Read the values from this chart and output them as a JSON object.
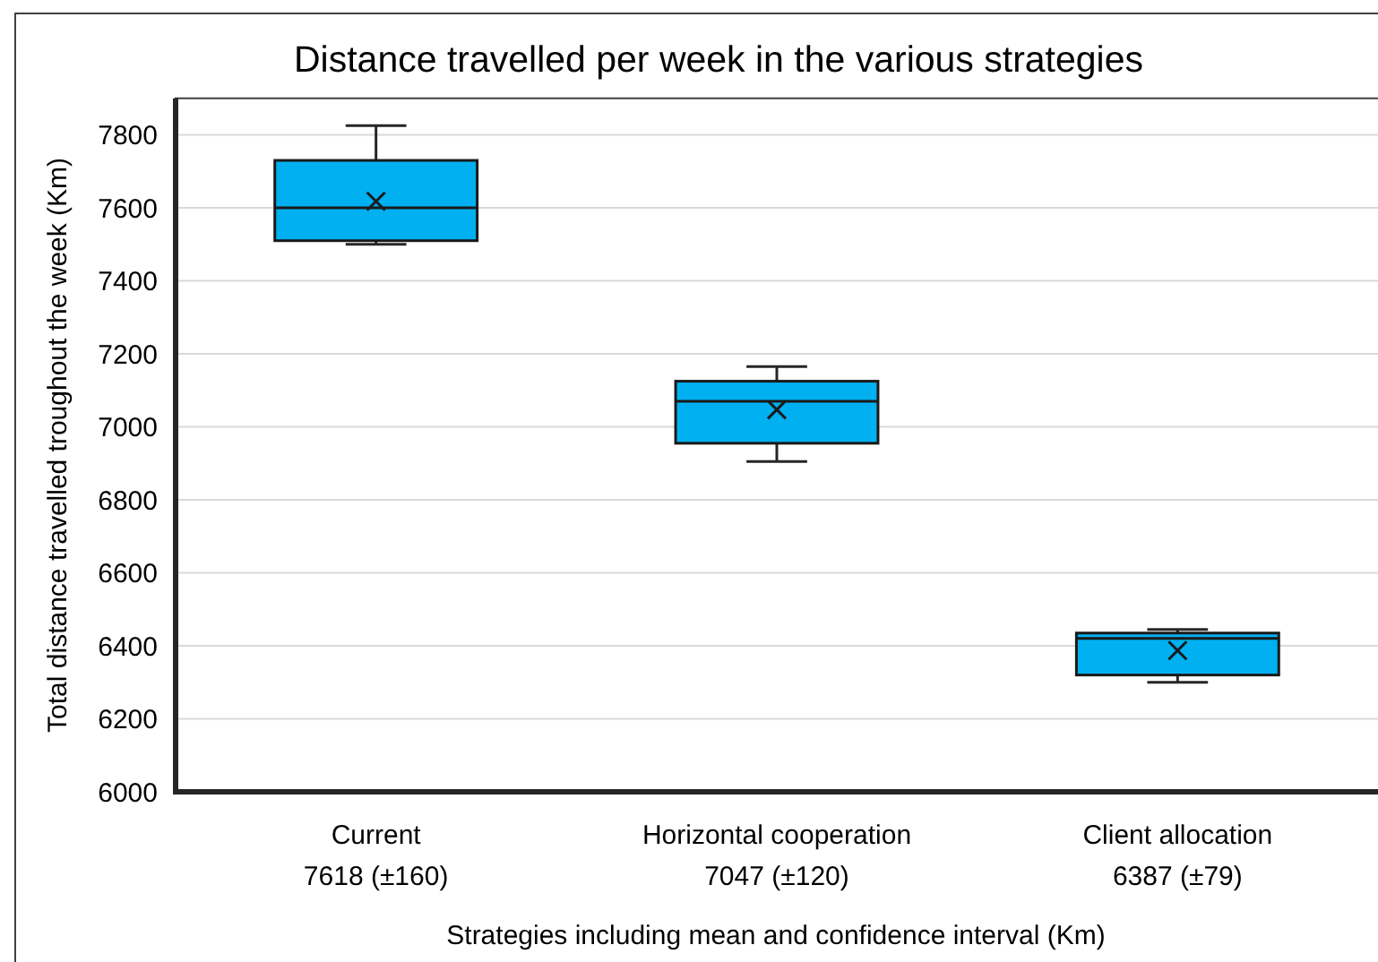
{
  "chart_data": {
    "type": "box",
    "title": "Distance travelled per week in the various strategies",
    "xlabel": "Strategies including mean and confidence interval (Km)",
    "ylabel": "Total distance travelled troughout the week (Km)",
    "categories": [
      "Current\n7618 (±160)",
      "Horizontal cooperation\n7047 (±120)",
      "Client allocation\n6387 (±79)"
    ],
    "boxes": [
      {
        "low": 7500,
        "q1": 7510,
        "median": 7600,
        "q3": 7730,
        "high": 7825,
        "mean": 7618
      },
      {
        "low": 6905,
        "q1": 6955,
        "median": 7070,
        "q3": 7125,
        "high": 7165,
        "mean": 7047
      },
      {
        "low": 6300,
        "q1": 6320,
        "median": 6420,
        "q3": 6435,
        "high": 6445,
        "mean": 6387
      }
    ],
    "color": "#00b0f0",
    "marker": "cross",
    "ylim": [
      6000,
      7900
    ],
    "yticks": [
      6000,
      6200,
      6400,
      6600,
      6800,
      7000,
      7200,
      7400,
      7600,
      7800
    ],
    "grid": "y"
  }
}
